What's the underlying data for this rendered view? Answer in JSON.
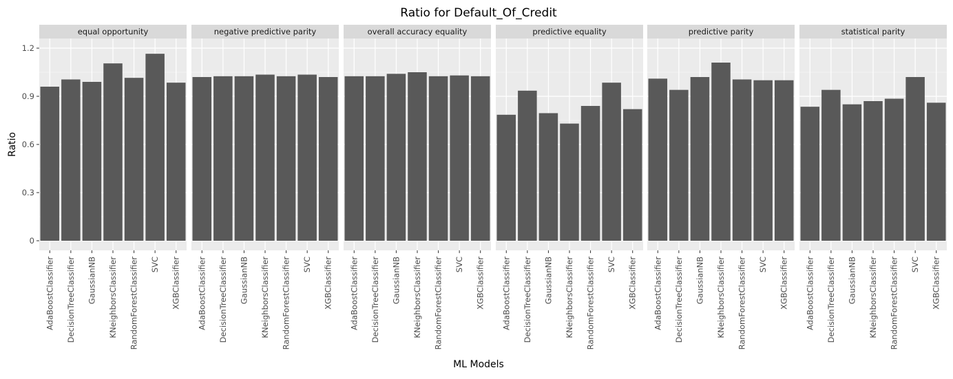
{
  "chart_data": {
    "type": "bar",
    "title": "Ratio for Default_Of_Credit",
    "xlabel": "ML Models",
    "ylabel": "Ratio",
    "ylim": [
      -0.06,
      1.26
    ],
    "yticks": [
      0,
      0.3,
      0.6,
      0.9,
      1.2
    ],
    "ytick_labels": [
      "0",
      "0.3",
      "0.6",
      "0.9",
      "1.2"
    ],
    "grid": true,
    "bar_color": "#595959",
    "panel_bg": "#ebebeb",
    "strip_bg": "#d9d9d9",
    "grid_color": "#ffffff",
    "categories": [
      "AdaBoostClassifier",
      "DecisionTreeClassifier",
      "GaussianNB",
      "KNeighborsClassifier",
      "RandomForestClassifier",
      "SVC",
      "XGBClassifier"
    ],
    "facets": [
      {
        "name": "equal opportunity",
        "values": [
          0.96,
          1.005,
          0.99,
          1.105,
          1.015,
          1.165,
          0.985
        ]
      },
      {
        "name": "negative predictive parity",
        "values": [
          1.02,
          1.025,
          1.025,
          1.035,
          1.025,
          1.035,
          1.02
        ]
      },
      {
        "name": "overall accuracy equality",
        "values": [
          1.025,
          1.025,
          1.04,
          1.05,
          1.025,
          1.03,
          1.025
        ]
      },
      {
        "name": "predictive equality",
        "values": [
          0.785,
          0.935,
          0.795,
          0.73,
          0.84,
          0.985,
          0.82
        ]
      },
      {
        "name": "predictive parity",
        "values": [
          1.01,
          0.94,
          1.02,
          1.11,
          1.005,
          1.0,
          1.0
        ]
      },
      {
        "name": "statistical parity",
        "values": [
          0.835,
          0.94,
          0.85,
          0.87,
          0.885,
          1.02,
          0.86
        ]
      }
    ]
  }
}
